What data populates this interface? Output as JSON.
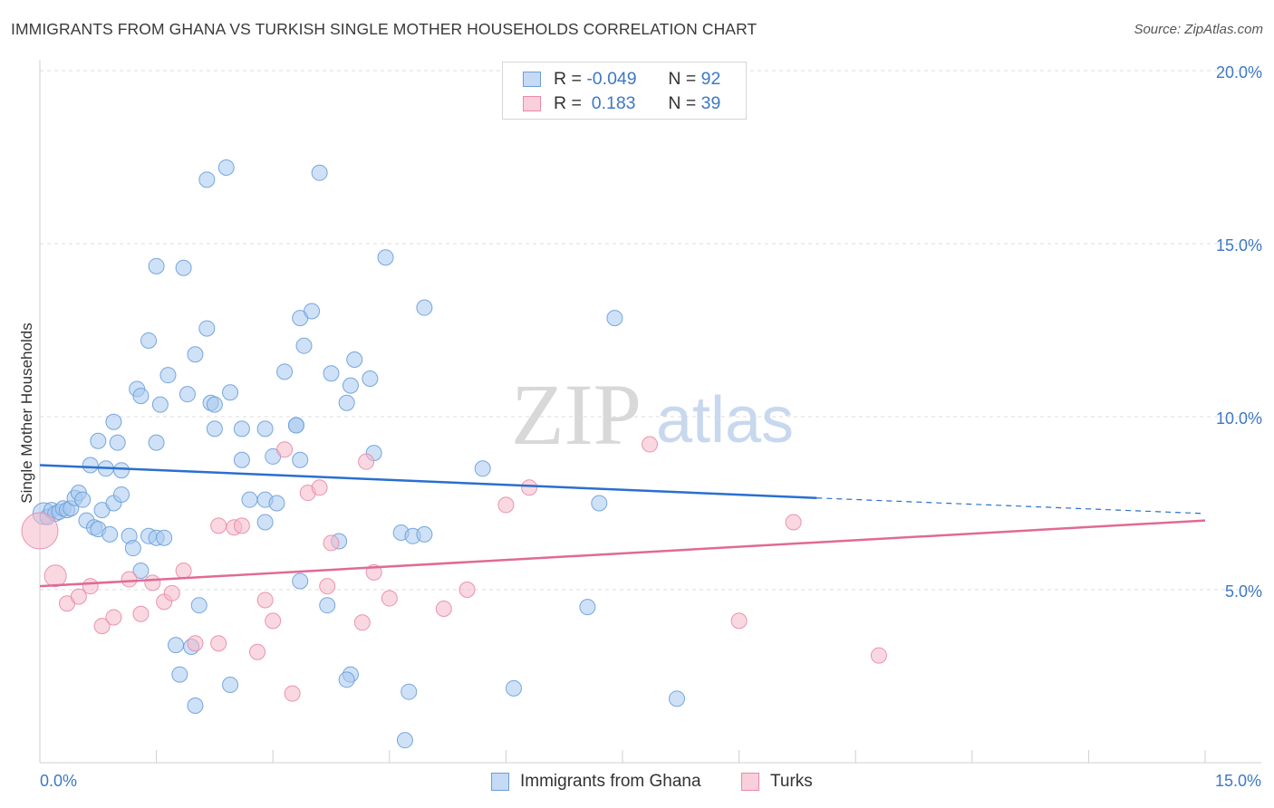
{
  "title": "IMMIGRANTS FROM GHANA VS TURKISH SINGLE MOTHER HOUSEHOLDS CORRELATION CHART",
  "source": "Source: ZipAtlas.com",
  "watermark": {
    "zip": "ZIP",
    "atlas": "atlas"
  },
  "legend": {
    "rows": [
      {
        "r_label": "R = ",
        "r_value": "-0.049",
        "n_label": "N = ",
        "n_value": "92",
        "color": "#a8c8f0"
      },
      {
        "r_label": "R = ",
        "r_value": " 0.183",
        "n_label": "N = ",
        "n_value": "39",
        "color": "#f5b8c8"
      }
    ]
  },
  "bottom_legend": [
    {
      "label": "Immigrants from Ghana",
      "color": "#a8c8f0"
    },
    {
      "label": "Turks",
      "color": "#f5b8c8"
    }
  ],
  "chart_data": {
    "type": "scatter",
    "title": "IMMIGRANTS FROM GHANA VS TURKISH SINGLE MOTHER HOUSEHOLDS CORRELATION CHART",
    "xlabel": "",
    "ylabel": "Single Mother Households",
    "xlim": [
      0,
      15
    ],
    "ylim": [
      0,
      20
    ],
    "x_tick_labels": [
      "0.0%",
      "15.0%"
    ],
    "y_ticks": [
      {
        "value": 5,
        "label": "5.0%"
      },
      {
        "value": 10,
        "label": "10.0%"
      },
      {
        "value": 15,
        "label": "15.0%"
      },
      {
        "value": 20,
        "label": "20.0%"
      }
    ],
    "grid": true,
    "legend_position": "top-center",
    "series": [
      {
        "name": "Immigrants from Ghana",
        "color": "#a8c8f0",
        "stroke": "#6a9fd8",
        "line_color": "#2a6fcf",
        "trend": {
          "x0": 0,
          "y0": 8.6,
          "x1": 10.0,
          "y1": 7.65,
          "dash_to_x": 15,
          "dash_to_y": 7.2
        },
        "points": [
          [
            0.05,
            7.2
          ],
          [
            0.1,
            7.1
          ],
          [
            0.15,
            7.3
          ],
          [
            0.2,
            7.2
          ],
          [
            0.25,
            7.25
          ],
          [
            0.3,
            7.35
          ],
          [
            0.35,
            7.3
          ],
          [
            0.4,
            7.35
          ],
          [
            0.45,
            7.65
          ],
          [
            0.5,
            7.8
          ],
          [
            0.55,
            7.6
          ],
          [
            0.6,
            7.0
          ],
          [
            0.7,
            6.8
          ],
          [
            0.75,
            6.75
          ],
          [
            0.8,
            7.3
          ],
          [
            0.9,
            6.6
          ],
          [
            0.95,
            7.5
          ],
          [
            1.05,
            7.75
          ],
          [
            1.15,
            6.55
          ],
          [
            1.2,
            6.2
          ],
          [
            1.3,
            5.55
          ],
          [
            1.4,
            6.55
          ],
          [
            1.5,
            6.5
          ],
          [
            1.6,
            6.5
          ],
          [
            0.65,
            8.6
          ],
          [
            0.85,
            8.5
          ],
          [
            1.05,
            8.45
          ],
          [
            0.75,
            9.3
          ],
          [
            1.0,
            9.25
          ],
          [
            1.5,
            9.25
          ],
          [
            0.95,
            9.85
          ],
          [
            1.25,
            10.8
          ],
          [
            1.3,
            10.6
          ],
          [
            1.55,
            10.35
          ],
          [
            1.9,
            10.65
          ],
          [
            2.2,
            10.4
          ],
          [
            2.45,
            10.7
          ],
          [
            2.25,
            10.35
          ],
          [
            2.25,
            9.65
          ],
          [
            2.6,
            9.65
          ],
          [
            2.9,
            9.65
          ],
          [
            2.6,
            8.75
          ],
          [
            3.0,
            8.85
          ],
          [
            3.35,
            8.75
          ],
          [
            3.3,
            9.75
          ],
          [
            1.65,
            11.2
          ],
          [
            2.0,
            11.8
          ],
          [
            2.15,
            12.55
          ],
          [
            1.4,
            12.2
          ],
          [
            1.5,
            14.35
          ],
          [
            1.85,
            14.3
          ],
          [
            2.15,
            16.85
          ],
          [
            2.4,
            17.2
          ],
          [
            3.6,
            17.05
          ],
          [
            4.45,
            14.6
          ],
          [
            3.35,
            12.85
          ],
          [
            3.5,
            13.05
          ],
          [
            3.4,
            12.05
          ],
          [
            3.15,
            11.3
          ],
          [
            3.75,
            11.25
          ],
          [
            4.05,
            11.65
          ],
          [
            4.0,
            10.9
          ],
          [
            4.25,
            11.1
          ],
          [
            3.95,
            10.4
          ],
          [
            3.3,
            9.75
          ],
          [
            4.3,
            8.95
          ],
          [
            4.95,
            13.15
          ],
          [
            7.4,
            12.85
          ],
          [
            5.7,
            8.5
          ],
          [
            7.2,
            7.5
          ],
          [
            2.7,
            7.6
          ],
          [
            2.9,
            7.6
          ],
          [
            3.05,
            7.5
          ],
          [
            2.9,
            6.95
          ],
          [
            3.85,
            6.4
          ],
          [
            4.65,
            6.65
          ],
          [
            4.8,
            6.55
          ],
          [
            4.95,
            6.6
          ],
          [
            3.35,
            5.25
          ],
          [
            2.05,
            4.55
          ],
          [
            1.75,
            3.4
          ],
          [
            1.95,
            3.35
          ],
          [
            3.7,
            4.55
          ],
          [
            4.0,
            2.55
          ],
          [
            3.95,
            2.4
          ],
          [
            1.8,
            2.55
          ],
          [
            2.45,
            2.25
          ],
          [
            4.75,
            2.05
          ],
          [
            6.1,
            2.15
          ],
          [
            8.2,
            1.85
          ],
          [
            2.0,
            1.65
          ],
          [
            4.7,
            0.65
          ],
          [
            7.05,
            4.5
          ]
        ]
      },
      {
        "name": "Turks",
        "color": "#f5b8c8",
        "stroke": "#e88aa8",
        "line_color": "#e06a95",
        "trend": {
          "x0": 0,
          "y0": 5.1,
          "x1": 15,
          "y1": 7.0
        },
        "points": [
          [
            0.0,
            6.7
          ],
          [
            0.2,
            5.4
          ],
          [
            0.35,
            4.6
          ],
          [
            0.5,
            4.8
          ],
          [
            0.65,
            5.1
          ],
          [
            0.8,
            3.95
          ],
          [
            0.95,
            4.2
          ],
          [
            1.15,
            5.3
          ],
          [
            1.3,
            4.3
          ],
          [
            1.45,
            5.2
          ],
          [
            1.6,
            4.65
          ],
          [
            1.7,
            4.9
          ],
          [
            1.85,
            5.55
          ],
          [
            2.0,
            3.45
          ],
          [
            2.3,
            6.85
          ],
          [
            2.5,
            6.8
          ],
          [
            2.6,
            6.85
          ],
          [
            2.3,
            3.45
          ],
          [
            2.8,
            3.2
          ],
          [
            2.9,
            4.7
          ],
          [
            3.0,
            4.1
          ],
          [
            3.15,
            9.05
          ],
          [
            3.25,
            2.0
          ],
          [
            3.45,
            7.8
          ],
          [
            3.6,
            7.95
          ],
          [
            3.7,
            5.1
          ],
          [
            3.75,
            6.35
          ],
          [
            4.15,
            4.05
          ],
          [
            4.2,
            8.7
          ],
          [
            4.3,
            5.5
          ],
          [
            4.5,
            4.75
          ],
          [
            5.2,
            4.45
          ],
          [
            5.5,
            5.0
          ],
          [
            6.0,
            7.45
          ],
          [
            6.3,
            7.95
          ],
          [
            7.85,
            9.2
          ],
          [
            9.0,
            4.1
          ],
          [
            9.7,
            6.95
          ],
          [
            10.8,
            3.1
          ]
        ]
      }
    ]
  }
}
